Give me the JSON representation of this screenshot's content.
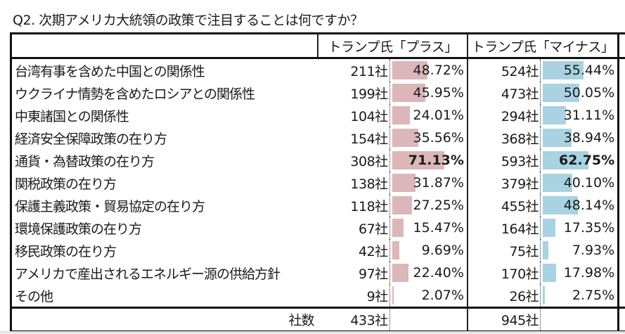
{
  "title": "Q2. 次期アメリカ大統領の政策で注目することは何ですか？",
  "table": {
    "headers": {
      "plus": "トランプ氏「プラス」",
      "minus": "トランプ氏「マイナス」"
    },
    "rows": [
      {
        "label": "台湾有事を含めた中国との関係性",
        "plus_count": "211社",
        "plus_pct": "48.72%",
        "minus_count": "524社",
        "minus_pct": "55.44%"
      },
      {
        "label": "ウクライナ情勢を含めたロシアとの関係性",
        "plus_count": "199社",
        "plus_pct": "45.95%",
        "minus_count": "473社",
        "minus_pct": "50.05%"
      },
      {
        "label": "中東諸国との関係性",
        "plus_count": "104社",
        "plus_pct": "24.01%",
        "minus_count": "294社",
        "minus_pct": "31.11%"
      },
      {
        "label": "経済安全保障政策の在り方",
        "plus_count": "154社",
        "plus_pct": "35.56%",
        "minus_count": "368社",
        "minus_pct": "38.94%"
      },
      {
        "label": "通貨・為替政策の在り方",
        "plus_count": "308社",
        "plus_pct": "71.13%",
        "minus_count": "593社",
        "minus_pct": "62.75%"
      },
      {
        "label": "関税政策の在り方",
        "plus_count": "138社",
        "plus_pct": "31.87%",
        "minus_count": "379社",
        "minus_pct": "40.10%"
      },
      {
        "label": "保護主義政策・貿易協定の在り方",
        "plus_count": "118社",
        "plus_pct": "27.25%",
        "minus_count": "455社",
        "minus_pct": "48.14%"
      },
      {
        "label": "環境保護政策の在り方",
        "plus_count": "67社",
        "plus_pct": "15.47%",
        "minus_count": "164社",
        "minus_pct": "17.35%"
      },
      {
        "label": "移民政策の在り方",
        "plus_count": "42社",
        "plus_pct": "9.69%",
        "minus_count": "75社",
        "minus_pct": "7.93%"
      },
      {
        "label": "アメリカで産出されるエネルギー源の供給方針",
        "plus_count": "97社",
        "plus_pct": "22.40%",
        "minus_count": "170社",
        "minus_pct": "17.98%"
      },
      {
        "label": "その他",
        "plus_count": "9社",
        "plus_pct": "2.07%",
        "minus_count": "26社",
        "minus_pct": "2.75%"
      }
    ],
    "total": {
      "label": "社数",
      "plus_count": "433社",
      "minus_count": "945社"
    }
  },
  "colors": {
    "plus_bar": "#dcb6b9",
    "minus_bar": "#a9d2e2",
    "border": "#111111"
  },
  "highlight_row_index": 4
}
